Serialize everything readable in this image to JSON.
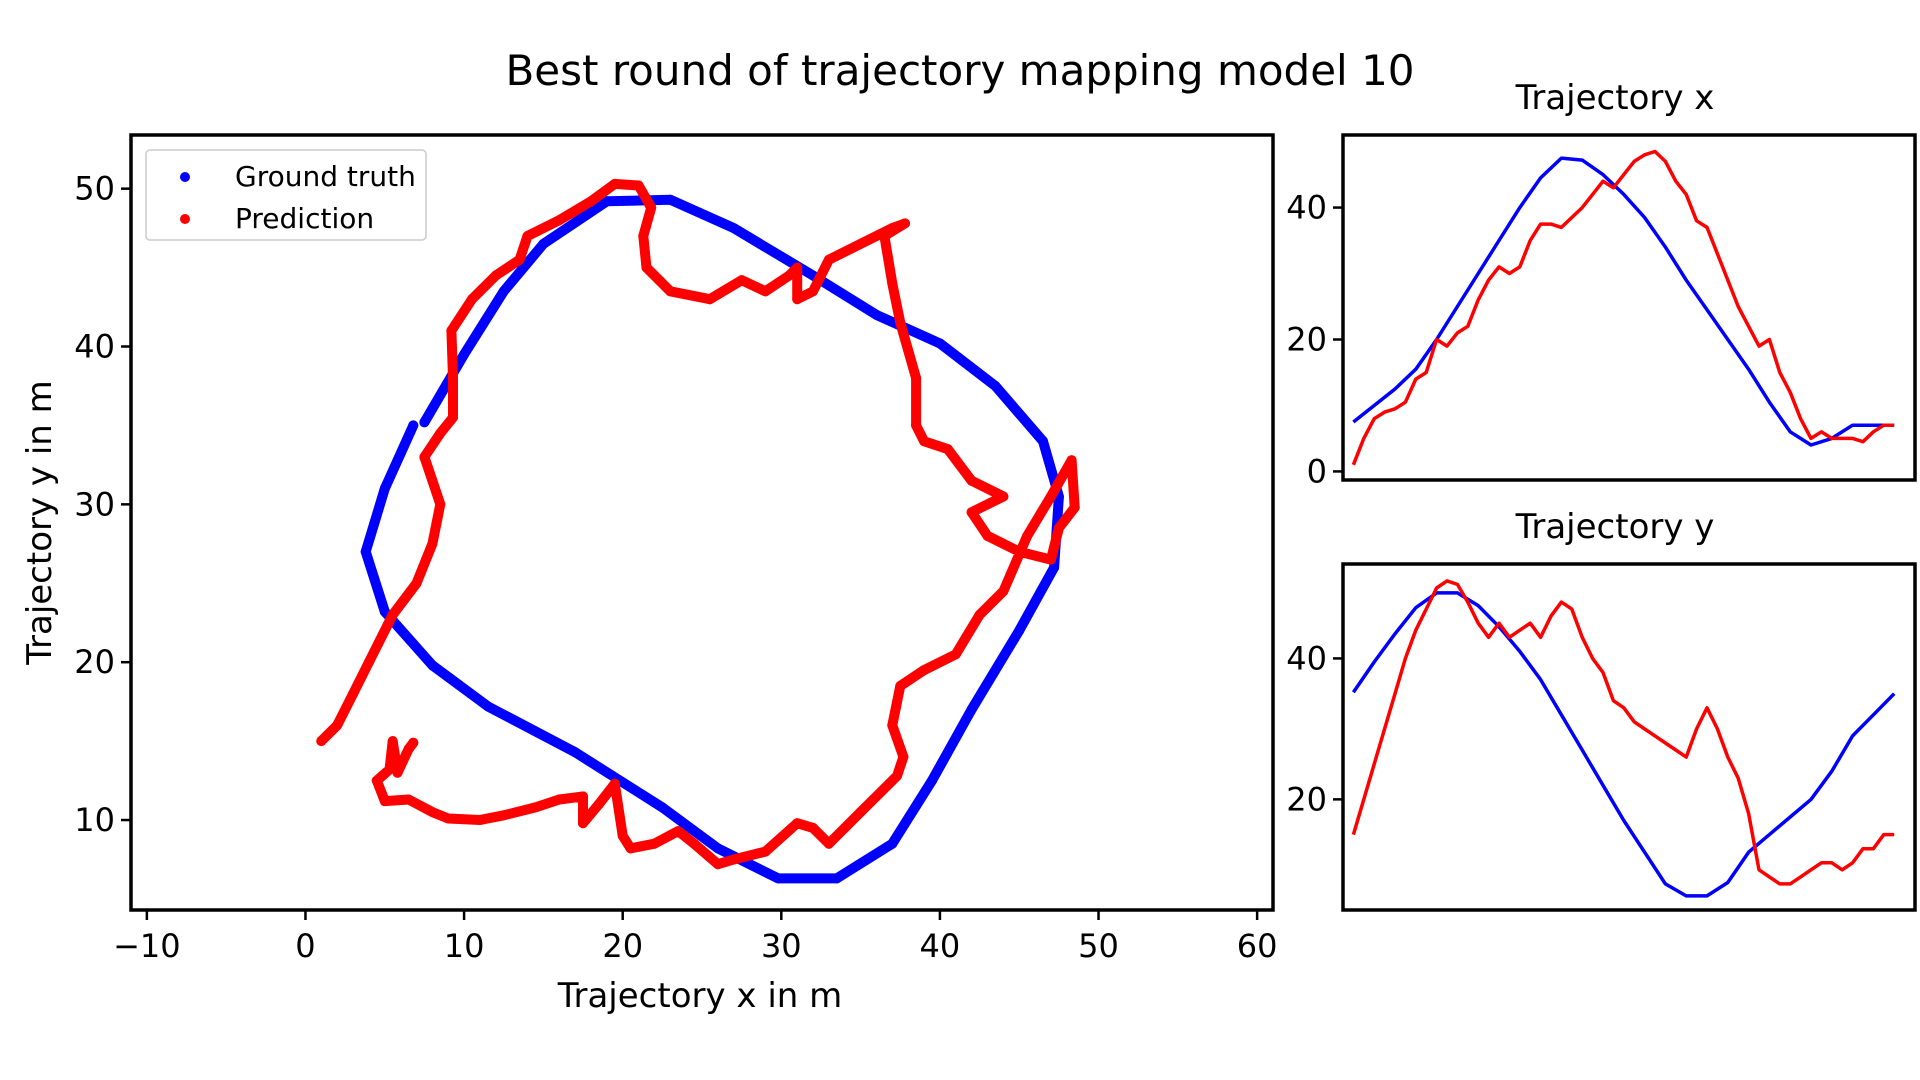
{
  "figure": {
    "title": "Best round of trajectory mapping model 10"
  },
  "colors": {
    "ground_truth": "#0000ff",
    "prediction": "#ff0000"
  },
  "chart_data": [
    {
      "type": "scatter",
      "title": "",
      "xlabel": "Trajectory x in m",
      "ylabel": "Trajectory y in m",
      "xlim": [
        -11,
        61
      ],
      "ylim": [
        4.3,
        53.4
      ],
      "xticks": [
        "−10",
        "0",
        "10",
        "20",
        "30",
        "40",
        "50",
        "60"
      ],
      "xtick_values": [
        -10,
        0,
        10,
        20,
        30,
        40,
        50,
        60
      ],
      "yticks": [
        "10",
        "20",
        "30",
        "40",
        "50"
      ],
      "ytick_values": [
        10,
        20,
        30,
        40,
        50
      ],
      "legend": {
        "position": "top-left",
        "entries": [
          "Ground truth",
          "Prediction"
        ]
      },
      "series": [
        {
          "name": "Ground truth",
          "points": [
            [
              7.5,
              35.2
            ],
            [
              10,
              39.5
            ],
            [
              12.5,
              43.5
            ],
            [
              15,
              46.5
            ],
            [
              19,
              49.2
            ],
            [
              23,
              49.3
            ],
            [
              27,
              47.5
            ],
            [
              32,
              44.5
            ],
            [
              36,
              42
            ],
            [
              40,
              40.2
            ],
            [
              43.5,
              37.5
            ],
            [
              46.5,
              34
            ],
            [
              47.5,
              30.5
            ],
            [
              47.2,
              26
            ],
            [
              45,
              22
            ],
            [
              42,
              17
            ],
            [
              39.5,
              12.5
            ],
            [
              37,
              8.5
            ],
            [
              33.5,
              6.3
            ],
            [
              29.8,
              6.3
            ],
            [
              26,
              8.2
            ],
            [
              22.5,
              10.8
            ],
            [
              17,
              14.3
            ],
            [
              11.5,
              17.2
            ],
            [
              8,
              19.8
            ],
            [
              5,
              23.2
            ],
            [
              3.8,
              27
            ],
            [
              5,
              31
            ],
            [
              6.8,
              35
            ]
          ]
        },
        {
          "name": "Prediction",
          "points": [
            [
              1,
              15
            ],
            [
              2,
              16
            ],
            [
              3,
              18
            ],
            [
              4,
              20
            ],
            [
              5.5,
              23
            ],
            [
              7,
              25
            ],
            [
              8,
              27.5
            ],
            [
              8.5,
              30
            ],
            [
              8,
              31.5
            ],
            [
              7.5,
              33
            ],
            [
              8.5,
              34.5
            ],
            [
              9.3,
              35.5
            ],
            [
              9.3,
              38
            ],
            [
              9.2,
              41
            ],
            [
              10.5,
              43
            ],
            [
              12,
              44.5
            ],
            [
              13.5,
              45.5
            ],
            [
              14,
              47
            ],
            [
              16,
              48
            ],
            [
              18,
              49.2
            ],
            [
              19.5,
              50.3
            ],
            [
              21,
              50.2
            ],
            [
              21.8,
              48.8
            ],
            [
              21.3,
              47
            ],
            [
              21.5,
              45
            ],
            [
              23,
              43.5
            ],
            [
              25.5,
              43
            ],
            [
              27.5,
              44.2
            ],
            [
              29,
              43.5
            ],
            [
              30.5,
              44.5
            ],
            [
              31,
              45
            ],
            [
              31,
              43
            ],
            [
              32,
              43.5
            ],
            [
              33,
              45.5
            ],
            [
              35,
              46.5
            ],
            [
              37,
              47.5
            ],
            [
              37.8,
              47.8
            ],
            [
              36.5,
              47
            ],
            [
              37,
              44
            ],
            [
              37.5,
              41.5
            ],
            [
              38.5,
              38
            ],
            [
              38.5,
              35
            ],
            [
              39,
              34
            ],
            [
              40.5,
              33.5
            ],
            [
              42,
              31.5
            ],
            [
              44,
              30.5
            ],
            [
              42,
              29.5
            ],
            [
              43,
              28
            ],
            [
              45,
              27
            ],
            [
              47,
              26.5
            ],
            [
              47.5,
              28.5
            ],
            [
              48.5,
              29.8
            ],
            [
              48.3,
              32.8
            ],
            [
              47,
              30.5
            ],
            [
              45.5,
              28
            ],
            [
              44,
              24.5
            ],
            [
              42.5,
              23
            ],
            [
              41,
              20.5
            ],
            [
              39,
              19.5
            ],
            [
              37.5,
              18.5
            ],
            [
              37,
              16
            ],
            [
              37.7,
              14
            ],
            [
              37.3,
              12.8
            ],
            [
              36.5,
              12
            ],
            [
              35,
              10.5
            ],
            [
              34,
              9.5
            ],
            [
              33,
              8.5
            ],
            [
              32,
              9.5
            ],
            [
              31,
              9.8
            ],
            [
              29,
              8
            ],
            [
              27,
              7.5
            ],
            [
              26,
              7.2
            ],
            [
              24.5,
              8.5
            ],
            [
              23.5,
              9.3
            ],
            [
              22,
              8.5
            ],
            [
              20.5,
              8.2
            ],
            [
              20,
              9
            ],
            [
              19.5,
              12.3
            ],
            [
              18.5,
              11
            ],
            [
              17.5,
              9.8
            ],
            [
              17.5,
              11.5
            ],
            [
              16,
              11.3
            ],
            [
              14.5,
              10.8
            ],
            [
              12.5,
              10.3
            ],
            [
              11,
              10
            ],
            [
              9,
              10.1
            ],
            [
              8,
              10.5
            ],
            [
              6.5,
              11.3
            ],
            [
              5,
              11.2
            ],
            [
              4.5,
              12.5
            ],
            [
              5.3,
              13.2
            ],
            [
              5.5,
              15
            ],
            [
              5.8,
              13
            ],
            [
              6.5,
              14.5
            ],
            [
              6.8,
              14.9
            ]
          ]
        }
      ]
    },
    {
      "type": "line",
      "title": "Trajectory x",
      "xlabel": "",
      "ylabel": "",
      "xlim": [
        -5,
        270
      ],
      "ylim": [
        -1.3,
        51
      ],
      "yticks": [
        "0",
        "20",
        "40"
      ],
      "ytick_values": [
        0,
        20,
        40
      ],
      "series": [
        {
          "name": "Ground truth",
          "x": [
            0,
            10,
            20,
            30,
            40,
            50,
            60,
            70,
            80,
            90,
            100,
            110,
            120,
            130,
            140,
            150,
            160,
            170,
            180,
            190,
            200,
            210,
            220,
            230,
            240,
            250,
            260
          ],
          "y": [
            7.5,
            10,
            12.5,
            15.5,
            20,
            25,
            30,
            35,
            40,
            44.5,
            47.5,
            47.2,
            45,
            42,
            38.5,
            34,
            29,
            24.5,
            20,
            15.5,
            10.5,
            6,
            4,
            5,
            7,
            7,
            7
          ]
        },
        {
          "name": "Prediction",
          "x": [
            0,
            5,
            10,
            15,
            20,
            25,
            30,
            35,
            40,
            45,
            50,
            55,
            60,
            65,
            70,
            75,
            80,
            85,
            90,
            95,
            100,
            105,
            110,
            115,
            120,
            125,
            130,
            135,
            140,
            145,
            150,
            155,
            160,
            165,
            170,
            175,
            180,
            185,
            190,
            195,
            200,
            205,
            210,
            215,
            220,
            225,
            230,
            235,
            240,
            245,
            250,
            255,
            260
          ],
          "y": [
            1,
            5,
            8,
            9,
            9.5,
            10.5,
            14,
            15,
            20,
            19,
            21,
            22,
            26,
            29,
            31,
            30,
            31,
            35,
            37.5,
            37.5,
            37,
            38.5,
            40,
            42,
            44,
            43,
            45,
            47,
            48,
            48.5,
            47,
            44,
            42,
            38,
            37,
            33,
            29,
            25,
            22,
            19,
            20,
            15,
            12,
            8,
            5,
            6,
            5,
            5,
            5,
            4.5,
            6,
            7,
            7
          ]
        }
      ]
    },
    {
      "type": "line",
      "title": "Trajectory y",
      "xlabel": "",
      "ylabel": "",
      "xlim": [
        -5,
        270
      ],
      "ylim": [
        4.3,
        53.4
      ],
      "yticks": [
        "20",
        "40"
      ],
      "ytick_values": [
        20,
        40
      ],
      "series": [
        {
          "name": "Ground truth",
          "x": [
            0,
            10,
            20,
            30,
            40,
            50,
            60,
            70,
            80,
            90,
            100,
            110,
            120,
            130,
            140,
            150,
            160,
            170,
            180,
            190,
            200,
            210,
            220,
            230,
            240,
            250,
            260
          ],
          "y": [
            35.2,
            39.5,
            43.5,
            47.2,
            49.3,
            49.3,
            47.5,
            44.5,
            41,
            37,
            32,
            27,
            22,
            17,
            12.5,
            8,
            6.3,
            6.3,
            8.2,
            12.5,
            15,
            17.5,
            20,
            24,
            29,
            32,
            35
          ]
        },
        {
          "name": "Prediction",
          "x": [
            0,
            5,
            10,
            15,
            20,
            25,
            30,
            35,
            40,
            45,
            50,
            55,
            60,
            65,
            70,
            75,
            80,
            85,
            90,
            95,
            100,
            105,
            110,
            115,
            120,
            125,
            130,
            135,
            140,
            145,
            150,
            155,
            160,
            165,
            170,
            175,
            180,
            185,
            190,
            195,
            200,
            205,
            210,
            215,
            220,
            225,
            230,
            235,
            240,
            245,
            250,
            255,
            260
          ],
          "y": [
            15,
            20,
            25,
            30,
            35,
            40,
            44,
            47,
            50,
            51,
            50.5,
            48,
            45,
            43,
            45,
            43,
            44,
            45,
            43,
            46,
            48,
            47,
            43,
            40,
            38,
            34,
            33,
            31,
            30,
            29,
            28,
            27,
            26,
            30,
            33,
            30,
            26,
            23,
            18,
            10,
            9,
            8,
            8,
            9,
            10,
            11,
            11,
            10,
            11,
            13,
            13,
            15,
            15
          ]
        }
      ]
    }
  ]
}
